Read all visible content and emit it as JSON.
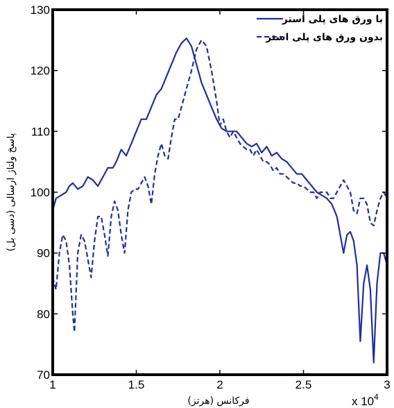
{
  "chart_data": {
    "type": "line",
    "xlabel": "فرکانس (هرتز)",
    "ylabel": "پاسخ ولتاژ ارسالی (دسی بل)",
    "x_multiplier_label": "x 10",
    "x_multiplier_exp": "4",
    "xlim": [
      1,
      3
    ],
    "ylim": [
      70,
      130
    ],
    "xticks": [
      1,
      1.5,
      2,
      2.5,
      3
    ],
    "xtick_labels": [
      "1",
      "1.5",
      "2",
      "2.5",
      "3"
    ],
    "yticks": [
      70,
      80,
      90,
      100,
      110,
      120,
      130
    ],
    "ytick_labels": [
      "70",
      "80",
      "90",
      "100",
      "110",
      "120",
      "130"
    ],
    "grid": false,
    "legend_position": "top-right",
    "color": "#1f2f9e",
    "series": [
      {
        "name": "با ورق های پلی استر",
        "style": "solid",
        "points": [
          [
            1.0,
            97
          ],
          [
            1.02,
            99
          ],
          [
            1.05,
            99.5
          ],
          [
            1.08,
            100
          ],
          [
            1.1,
            101
          ],
          [
            1.12,
            101.5
          ],
          [
            1.15,
            100.5
          ],
          [
            1.18,
            101
          ],
          [
            1.21,
            102.5
          ],
          [
            1.24,
            102
          ],
          [
            1.27,
            101
          ],
          [
            1.3,
            102.5
          ],
          [
            1.33,
            104
          ],
          [
            1.36,
            104
          ],
          [
            1.38,
            105
          ],
          [
            1.41,
            107
          ],
          [
            1.44,
            106
          ],
          [
            1.47,
            108
          ],
          [
            1.5,
            110
          ],
          [
            1.53,
            112
          ],
          [
            1.56,
            112
          ],
          [
            1.59,
            114
          ],
          [
            1.62,
            116
          ],
          [
            1.65,
            117
          ],
          [
            1.68,
            119
          ],
          [
            1.71,
            121
          ],
          [
            1.74,
            123
          ],
          [
            1.77,
            124.5
          ],
          [
            1.8,
            125.3
          ],
          [
            1.83,
            124
          ],
          [
            1.86,
            121
          ],
          [
            1.89,
            118
          ],
          [
            1.92,
            116
          ],
          [
            1.95,
            114
          ],
          [
            1.98,
            112
          ],
          [
            2.01,
            110.5
          ],
          [
            2.04,
            110
          ],
          [
            2.07,
            110
          ],
          [
            2.1,
            110
          ],
          [
            2.13,
            109
          ],
          [
            2.16,
            108
          ],
          [
            2.19,
            107.5
          ],
          [
            2.22,
            108
          ],
          [
            2.25,
            106.5
          ],
          [
            2.28,
            107.5
          ],
          [
            2.31,
            106
          ],
          [
            2.34,
            106.5
          ],
          [
            2.37,
            105.5
          ],
          [
            2.4,
            105
          ],
          [
            2.43,
            104
          ],
          [
            2.46,
            103
          ],
          [
            2.49,
            103
          ],
          [
            2.52,
            102
          ],
          [
            2.55,
            101
          ],
          [
            2.58,
            100
          ],
          [
            2.61,
            99.5
          ],
          [
            2.64,
            99
          ],
          [
            2.67,
            98
          ],
          [
            2.7,
            96
          ],
          [
            2.72,
            93
          ],
          [
            2.74,
            90
          ],
          [
            2.76,
            93
          ],
          [
            2.78,
            93.5
          ],
          [
            2.8,
            92
          ],
          [
            2.82,
            88
          ],
          [
            2.84,
            75.5
          ],
          [
            2.86,
            85
          ],
          [
            2.88,
            88
          ],
          [
            2.9,
            84
          ],
          [
            2.92,
            72
          ],
          [
            2.94,
            85
          ],
          [
            2.96,
            90
          ],
          [
            2.98,
            90
          ],
          [
            3.0,
            88
          ]
        ]
      },
      {
        "name": "بدون ورق های پلی استر",
        "style": "dashed",
        "points": [
          [
            1.0,
            86
          ],
          [
            1.02,
            84
          ],
          [
            1.04,
            90
          ],
          [
            1.06,
            93
          ],
          [
            1.08,
            92
          ],
          [
            1.1,
            88
          ],
          [
            1.12,
            80
          ],
          [
            1.13,
            77
          ],
          [
            1.15,
            90
          ],
          [
            1.17,
            93
          ],
          [
            1.19,
            92
          ],
          [
            1.21,
            89
          ],
          [
            1.23,
            86
          ],
          [
            1.25,
            92
          ],
          [
            1.27,
            96
          ],
          [
            1.29,
            96
          ],
          [
            1.31,
            93
          ],
          [
            1.33,
            89.5
          ],
          [
            1.35,
            96
          ],
          [
            1.37,
            98.5
          ],
          [
            1.39,
            97
          ],
          [
            1.41,
            93
          ],
          [
            1.43,
            90
          ],
          [
            1.45,
            97
          ],
          [
            1.47,
            100
          ],
          [
            1.49,
            100.5
          ],
          [
            1.51,
            100.5
          ],
          [
            1.53,
            101.5
          ],
          [
            1.55,
            102.5
          ],
          [
            1.57,
            101
          ],
          [
            1.59,
            98
          ],
          [
            1.61,
            103
          ],
          [
            1.63,
            106
          ],
          [
            1.65,
            108
          ],
          [
            1.67,
            106
          ],
          [
            1.69,
            105.5
          ],
          [
            1.71,
            109
          ],
          [
            1.73,
            112
          ],
          [
            1.75,
            112
          ],
          [
            1.77,
            114
          ],
          [
            1.79,
            116
          ],
          [
            1.81,
            118
          ],
          [
            1.83,
            120
          ],
          [
            1.86,
            123.5
          ],
          [
            1.89,
            125
          ],
          [
            1.92,
            124
          ],
          [
            1.95,
            120
          ],
          [
            1.98,
            115
          ],
          [
            2.0,
            111
          ],
          [
            2.02,
            112
          ],
          [
            2.04,
            110
          ],
          [
            2.06,
            109
          ],
          [
            2.08,
            110
          ],
          [
            2.1,
            109
          ],
          [
            2.12,
            108
          ],
          [
            2.14,
            107.5
          ],
          [
            2.16,
            107
          ],
          [
            2.18,
            107
          ],
          [
            2.2,
            106
          ],
          [
            2.22,
            107
          ],
          [
            2.24,
            106
          ],
          [
            2.26,
            105
          ],
          [
            2.28,
            105
          ],
          [
            2.3,
            104.5
          ],
          [
            2.32,
            103.5
          ],
          [
            2.34,
            104
          ],
          [
            2.36,
            103
          ],
          [
            2.38,
            103
          ],
          [
            2.4,
            102.5
          ],
          [
            2.42,
            102
          ],
          [
            2.44,
            101.5
          ],
          [
            2.46,
            101.5
          ],
          [
            2.48,
            101
          ],
          [
            2.5,
            101
          ],
          [
            2.52,
            100.5
          ],
          [
            2.54,
            100
          ],
          [
            2.56,
            100
          ],
          [
            2.58,
            99
          ],
          [
            2.6,
            100
          ],
          [
            2.62,
            100
          ],
          [
            2.64,
            100
          ],
          [
            2.66,
            99
          ],
          [
            2.68,
            99
          ],
          [
            2.7,
            100
          ],
          [
            2.72,
            101
          ],
          [
            2.74,
            102
          ],
          [
            2.76,
            101
          ],
          [
            2.78,
            100
          ],
          [
            2.8,
            97
          ],
          [
            2.82,
            96.5
          ],
          [
            2.84,
            99
          ],
          [
            2.86,
            99
          ],
          [
            2.88,
            98
          ],
          [
            2.9,
            95
          ],
          [
            2.92,
            94.5
          ],
          [
            2.94,
            97
          ],
          [
            2.96,
            99
          ],
          [
            2.98,
            100
          ],
          [
            3.0,
            99
          ]
        ]
      }
    ]
  }
}
